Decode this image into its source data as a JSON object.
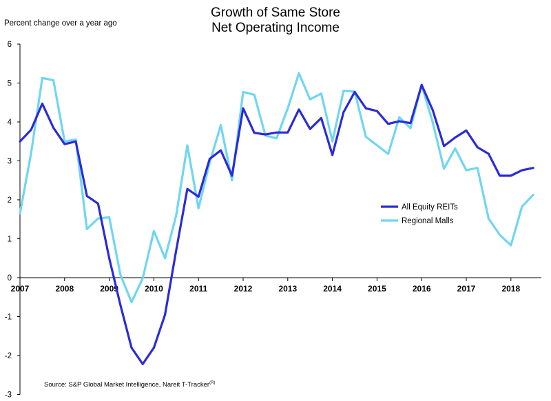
{
  "chart_data": {
    "type": "line",
    "title": [
      "Growth of Same Store",
      "Net Operating Income"
    ],
    "ylabel": "Percent change over a year ago",
    "source": "Source: S&P Global Market Intelligence, Nareit T-Tracker",
    "source_sup": "(R)",
    "ylim": [
      -3,
      6
    ],
    "yticks": [
      6,
      5,
      4,
      3,
      2,
      1,
      0,
      -1,
      -2,
      -3
    ],
    "xlim": [
      2007,
      2018.75
    ],
    "xticks": [
      2007,
      2008,
      2009,
      2010,
      2011,
      2012,
      2013,
      2014,
      2015,
      2016,
      2017,
      2018
    ],
    "grid": false,
    "legend_position": "right",
    "series": [
      {
        "name": "All Equity REITs",
        "color": "#2b2bd8",
        "x": [
          2007,
          2007.25,
          2007.5,
          2007.75,
          2008,
          2008.25,
          2008.5,
          2008.75,
          2009,
          2009.25,
          2009.5,
          2009.75,
          2010,
          2010.25,
          2010.5,
          2010.75,
          2011,
          2011.25,
          2011.5,
          2011.75,
          2012,
          2012.25,
          2012.5,
          2012.75,
          2013,
          2013.25,
          2013.5,
          2013.75,
          2014,
          2014.25,
          2014.5,
          2014.75,
          2015,
          2015.25,
          2015.5,
          2015.75,
          2016,
          2016.25,
          2016.5,
          2016.75,
          2017,
          2017.25,
          2017.5,
          2017.75,
          2018,
          2018.25,
          2018.5
        ],
        "values": [
          3.5,
          3.8,
          4.47,
          3.85,
          3.43,
          3.5,
          2.1,
          1.9,
          0.5,
          -0.7,
          -1.8,
          -2.22,
          -1.8,
          -0.95,
          0.7,
          2.28,
          2.08,
          3.05,
          3.27,
          2.62,
          4.35,
          3.72,
          3.68,
          3.73,
          3.73,
          4.32,
          3.82,
          4.1,
          3.15,
          4.25,
          4.77,
          4.35,
          4.28,
          3.95,
          4.02,
          3.97,
          4.95,
          4.3,
          3.38,
          3.6,
          3.78,
          3.35,
          3.18,
          2.62,
          2.62,
          2.76,
          2.82
        ]
      },
      {
        "name": "Regional Malls",
        "color": "#6fd6f2",
        "x": [
          2007,
          2007.25,
          2007.5,
          2007.75,
          2008,
          2008.25,
          2008.5,
          2008.75,
          2009,
          2009.25,
          2009.5,
          2009.75,
          2010,
          2010.25,
          2010.5,
          2010.75,
          2011,
          2011.25,
          2011.5,
          2011.75,
          2012,
          2012.25,
          2012.5,
          2012.75,
          2013,
          2013.25,
          2013.5,
          2013.75,
          2014,
          2014.25,
          2014.5,
          2014.75,
          2015,
          2015.25,
          2015.5,
          2015.75,
          2016,
          2016.25,
          2016.5,
          2016.75,
          2017,
          2017.25,
          2017.5,
          2017.75,
          2018,
          2018.25,
          2018.5
        ],
        "values": [
          1.65,
          3.2,
          5.13,
          5.07,
          3.5,
          3.55,
          1.25,
          1.52,
          1.55,
          0.08,
          -0.63,
          -0.02,
          1.2,
          0.5,
          1.6,
          3.4,
          1.78,
          2.95,
          3.92,
          2.5,
          4.77,
          4.7,
          3.65,
          3.58,
          4.35,
          5.25,
          4.58,
          4.73,
          3.5,
          4.8,
          4.78,
          3.62,
          3.4,
          3.18,
          4.12,
          3.84,
          4.95,
          3.98,
          2.8,
          3.32,
          2.76,
          2.82,
          1.52,
          1.1,
          0.83,
          1.83,
          2.13
        ]
      }
    ]
  }
}
